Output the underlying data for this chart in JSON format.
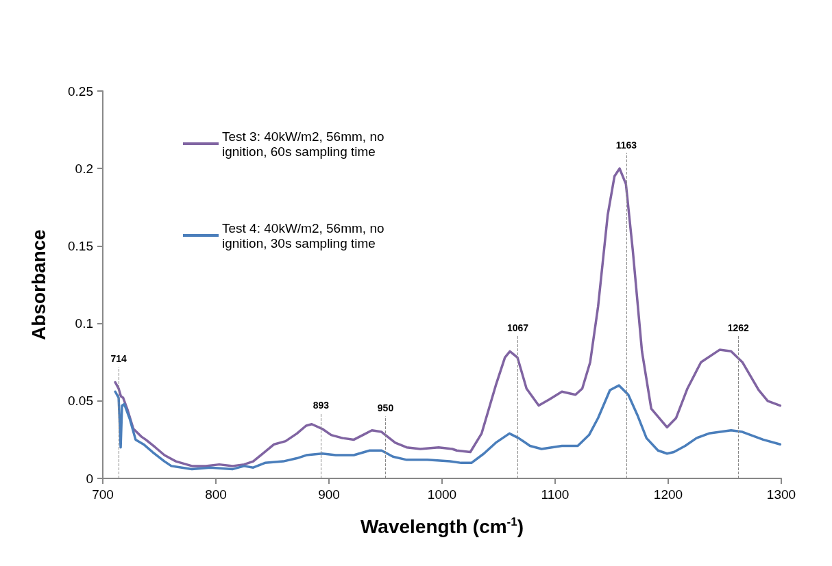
{
  "chart_data": {
    "type": "line",
    "xlabel": "Wavelength (cm$^{-1}$)",
    "ylabel": "Absorbance",
    "xlim": [
      700,
      1300
    ],
    "xticks": [
      700,
      800,
      900,
      1000,
      1100,
      1200,
      1300
    ],
    "ylim": [
      0,
      0.25
    ],
    "yticks": [
      0,
      0.05,
      0.1,
      0.15,
      0.2,
      0.25
    ],
    "grid": false,
    "legend": "top left",
    "marker": "none",
    "line_style": "solid",
    "series": [
      {
        "name": "Test 3: 40kW/m2, 56mm, no ignition, 60s sampling time",
        "color": "#8064a2",
        "x": [
          711,
          714,
          716,
          718,
          722,
          727,
          734,
          738,
          746.5,
          754.5,
          764.7,
          778.8,
          791,
          803,
          815,
          825,
          833,
          841.4,
          851.5,
          861.6,
          871.7,
          879.8,
          884.8,
          894,
          902,
          912,
          922,
          930,
          938,
          946.5,
          958.6,
          968.7,
          980.8,
          997,
          1009,
          1013,
          1025,
          1035,
          1047.5,
          1055.6,
          1060,
          1066.7,
          1074.7,
          1085.5,
          1095,
          1106,
          1118,
          1124,
          1131,
          1138,
          1146.5,
          1152.5,
          1157,
          1162.6,
          1168.7,
          1176.8,
          1185,
          1199,
          1207,
          1217,
          1229,
          1245.5,
          1255.6,
          1265.6,
          1280,
          1288,
          1299
        ],
        "values": [
          0.062,
          0.058,
          0.053,
          0.052,
          0.044,
          0.032,
          0.027,
          0.025,
          0.02,
          0.015,
          0.011,
          0.008,
          0.008,
          0.009,
          0.008,
          0.009,
          0.011,
          0.016,
          0.022,
          0.024,
          0.029,
          0.034,
          0.035,
          0.032,
          0.028,
          0.026,
          0.025,
          0.028,
          0.031,
          0.03,
          0.023,
          0.02,
          0.019,
          0.02,
          0.019,
          0.018,
          0.017,
          0.029,
          0.06,
          0.078,
          0.082,
          0.078,
          0.058,
          0.047,
          0.051,
          0.056,
          0.054,
          0.058,
          0.075,
          0.111,
          0.17,
          0.195,
          0.2,
          0.19,
          0.147,
          0.082,
          0.045,
          0.033,
          0.039,
          0.058,
          0.075,
          0.083,
          0.082,
          0.075,
          0.057,
          0.05,
          0.047
        ]
      },
      {
        "name": "Test 4: 40kW/m2, 56mm, no ignition, 30s sampling time",
        "color": "#4a7ebb",
        "x": [
          711,
          714,
          715.8,
          717,
          719,
          724,
          729,
          736,
          744,
          754.5,
          760.6,
          778.8,
          795,
          815,
          825,
          833,
          843.4,
          859.6,
          871.7,
          880,
          894,
          906,
          922,
          936,
          946.5,
          956.6,
          968.7,
          987,
          1007,
          1017,
          1026,
          1037,
          1047.5,
          1059.6,
          1067.7,
          1077.8,
          1088,
          1106,
          1120,
          1130,
          1138,
          1148.5,
          1156.5,
          1164.7,
          1172.7,
          1180.8,
          1191,
          1199,
          1205,
          1215,
          1225,
          1236,
          1255.6,
          1265.6,
          1284,
          1299
        ],
        "values": [
          0.056,
          0.052,
          0.02,
          0.047,
          0.048,
          0.038,
          0.025,
          0.022,
          0.017,
          0.011,
          0.008,
          0.006,
          0.007,
          0.006,
          0.008,
          0.007,
          0.01,
          0.011,
          0.013,
          0.015,
          0.016,
          0.015,
          0.015,
          0.018,
          0.018,
          0.014,
          0.012,
          0.012,
          0.011,
          0.01,
          0.01,
          0.016,
          0.023,
          0.029,
          0.026,
          0.021,
          0.019,
          0.021,
          0.021,
          0.028,
          0.039,
          0.057,
          0.06,
          0.054,
          0.041,
          0.026,
          0.018,
          0.016,
          0.017,
          0.021,
          0.026,
          0.029,
          0.031,
          0.03,
          0.025,
          0.022
        ]
      }
    ],
    "ref_lines": [
      {
        "axis": "x",
        "value": 714,
        "label": "714"
      },
      {
        "axis": "x",
        "value": 893,
        "label": "893"
      },
      {
        "axis": "x",
        "value": 950,
        "label": "950"
      },
      {
        "axis": "x",
        "value": 1067,
        "label": "1067"
      },
      {
        "axis": "x",
        "value": 1163,
        "label": "1163"
      },
      {
        "axis": "x",
        "value": 1262,
        "label": "1262"
      }
    ]
  }
}
